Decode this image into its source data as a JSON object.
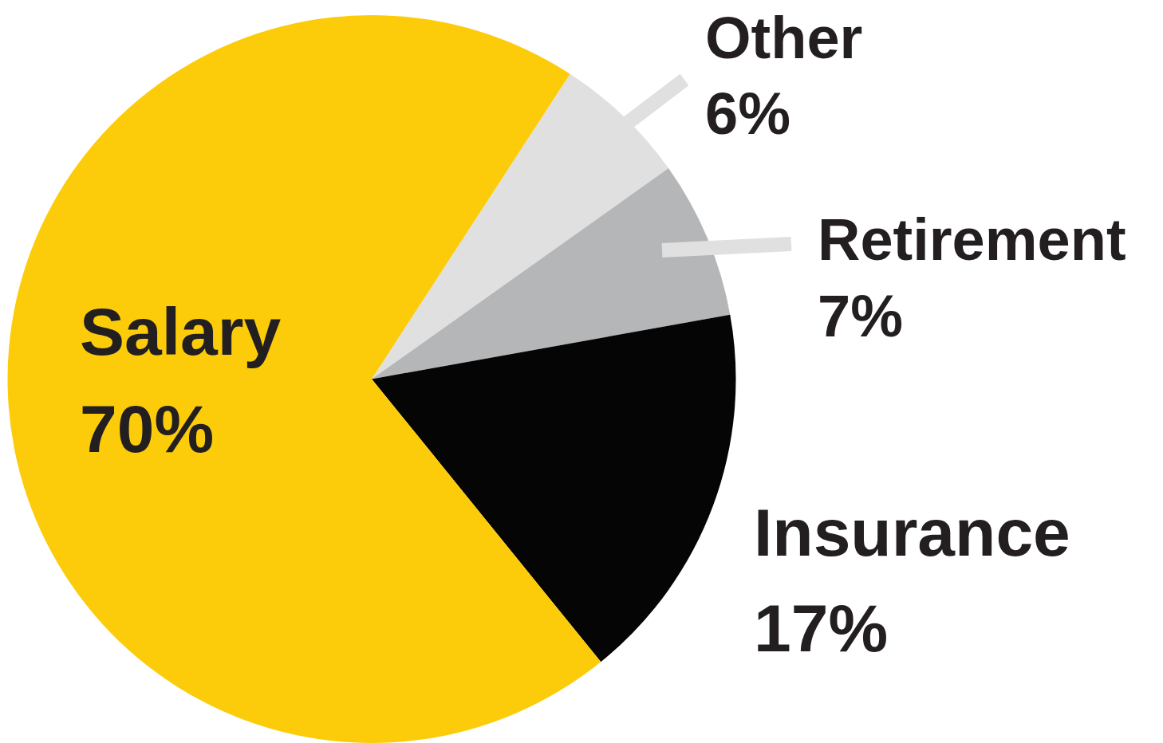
{
  "chart_data": {
    "type": "pie",
    "categories": [
      "Other",
      "Retirement",
      "Insurance",
      "Salary"
    ],
    "values": [
      6,
      7,
      17,
      70
    ],
    "colors": [
      "#dfe0df",
      "#b5b6b7",
      "#050505",
      "#fccc0a"
    ],
    "value_labels": [
      "6%",
      "7%",
      "17%",
      "70%"
    ],
    "legend": false
  }
}
